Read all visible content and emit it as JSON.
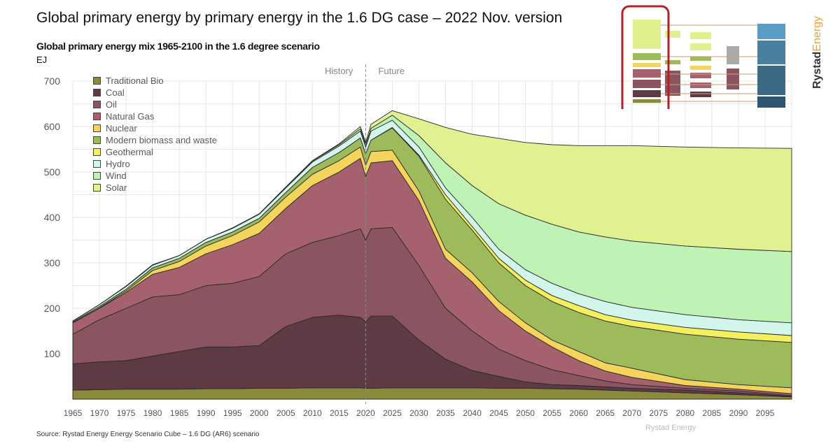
{
  "title": "Global primary energy by primary energy in the 1.6 DG case – 2022 Nov. version",
  "source": "Source: Rystad Energy Energy Scenario Cube – 1.6 DG (AR6) scenario",
  "watermark": "Rystad Energy",
  "logo": {
    "part1": "Rystad",
    "part2": "Energy"
  },
  "chart_data": {
    "type": "area",
    "stacked": true,
    "title": "Global primary energy mix 1965-2100 in the 1.6 degree scenario",
    "ylabel": "EJ",
    "xlabel": "",
    "ylim": [
      0,
      700
    ],
    "xlim": [
      1965,
      2100
    ],
    "y_ticks": [
      "100",
      "200",
      "300",
      "400",
      "500",
      "600",
      "700"
    ],
    "x_ticks": [
      "1965",
      "1970",
      "1975",
      "1980",
      "1985",
      "1990",
      "1995",
      "2000",
      "2005",
      "2010",
      "2015",
      "2020",
      "2025",
      "2030",
      "2035",
      "2040",
      "2045",
      "2050",
      "2055",
      "2060",
      "2065",
      "2070",
      "2075",
      "2080",
      "2085",
      "2090",
      "2095"
    ],
    "annotations": {
      "history": "History",
      "future": "Future",
      "divider_year": 2020
    },
    "grid": true,
    "legend_position": "top-left",
    "x": [
      1965,
      1970,
      1975,
      1980,
      1985,
      1990,
      1995,
      2000,
      2005,
      2010,
      2015,
      2019,
      2020,
      2021,
      2025,
      2030,
      2035,
      2040,
      2045,
      2050,
      2055,
      2060,
      2065,
      2070,
      2080,
      2090,
      2100
    ],
    "series": [
      {
        "name": "Traditional Bio",
        "color": "#8b8a3c",
        "values": [
          20,
          21,
          22,
          22,
          22,
          23,
          23,
          24,
          24,
          25,
          25,
          25,
          24,
          24,
          25,
          25,
          25,
          25,
          24,
          24,
          23,
          22,
          20,
          18,
          14,
          10,
          5
        ]
      },
      {
        "name": "Coal",
        "color": "#5e3a44",
        "values": [
          58,
          61,
          63,
          73,
          83,
          92,
          92,
          94,
          136,
          155,
          160,
          155,
          146,
          159,
          158,
          105,
          63,
          38,
          26,
          14,
          9,
          8,
          7,
          6,
          6,
          4,
          1
        ]
      },
      {
        "name": "Oil",
        "color": "#8a5560",
        "values": [
          65,
          93,
          115,
          130,
          125,
          135,
          140,
          152,
          160,
          165,
          175,
          195,
          180,
          192,
          195,
          164,
          112,
          87,
          60,
          47,
          33,
          22,
          13,
          8,
          4,
          4,
          2
        ]
      },
      {
        "name": "Natural Gas",
        "color": "#a6616f",
        "values": [
          25,
          25,
          35,
          50,
          60,
          70,
          85,
          95,
          100,
          125,
          140,
          155,
          140,
          145,
          147,
          143,
          110,
          108,
          85,
          65,
          50,
          33,
          22,
          16,
          6,
          4,
          4
        ]
      },
      {
        "name": "Nuclear",
        "color": "#f5d45e",
        "values": [
          0,
          1,
          3,
          8,
          13,
          17,
          20,
          25,
          25,
          25,
          25,
          25,
          25,
          25,
          23,
          21,
          20,
          20,
          20,
          18,
          15,
          20,
          18,
          20,
          13,
          10,
          13
        ]
      },
      {
        "name": "Modern biomass and waste",
        "color": "#9dbb5b",
        "values": [
          2,
          3,
          4,
          6,
          7,
          8,
          8,
          8,
          10,
          15,
          18,
          20,
          25,
          25,
          49,
          77,
          110,
          94,
          85,
          82,
          85,
          86,
          92,
          92,
          100,
          100,
          100
        ]
      },
      {
        "name": "Geothermal",
        "color": "#f4ef5e",
        "values": [
          0,
          0,
          0,
          0,
          0,
          0,
          0,
          0,
          0,
          0,
          0,
          0,
          0,
          0,
          1,
          2,
          10,
          8,
          10,
          12,
          13,
          15,
          14,
          14,
          15,
          16,
          15
        ]
      },
      {
        "name": "Hydro",
        "color": "#d3f6ec",
        "values": [
          2,
          4,
          6,
          6,
          6,
          7,
          8,
          9,
          10,
          12,
          14,
          15,
          15,
          20,
          16,
          18,
          15,
          20,
          20,
          23,
          27,
          26,
          29,
          28,
          28,
          27,
          28
        ]
      },
      {
        "name": "Wind",
        "color": "#bff3b6",
        "values": [
          0,
          0,
          0,
          0,
          0,
          0,
          0,
          0,
          1,
          2,
          3,
          5,
          5,
          6,
          11,
          25,
          55,
          70,
          100,
          120,
          130,
          136,
          142,
          146,
          151,
          155,
          157
        ]
      },
      {
        "name": "Solar",
        "color": "#e1f191",
        "values": [
          0,
          0,
          1,
          1,
          0,
          0,
          1,
          1,
          1,
          1,
          2,
          5,
          5,
          9,
          10,
          37,
          78,
          113,
          144,
          160,
          175,
          190,
          201,
          210,
          218,
          223,
          227
        ]
      }
    ]
  }
}
